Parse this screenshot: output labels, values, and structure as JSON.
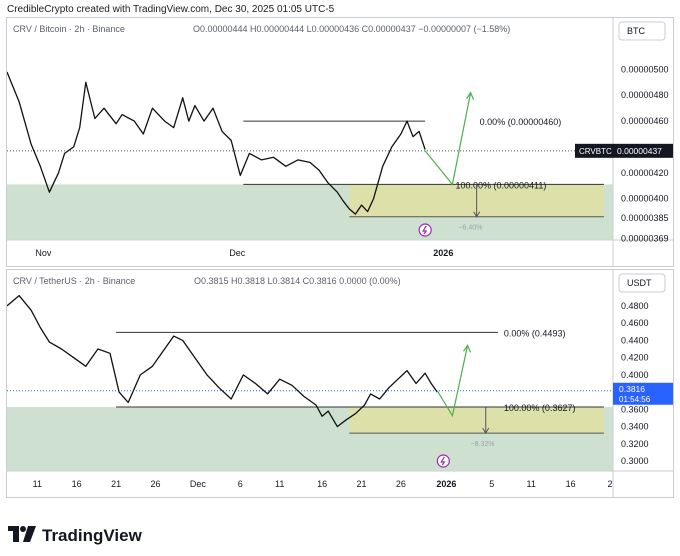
{
  "credit": "CredibleCrypto created with TradingView.com, Dec 30, 2025 01:05 UTC-5",
  "footer_brand": "TradingView",
  "colors": {
    "up_line": "#4caf50",
    "zone_green": "#c5dcc9",
    "zone_yellow": "#dfe0a4",
    "price_blue": "#2962ff",
    "current_tag": "#131722"
  },
  "icons": {
    "replay": "lightning-icon",
    "brand": "tradingview-logo-icon"
  },
  "chart_data": [
    {
      "type": "line",
      "symbol_header": "CRV / Bitcoin · 2h · Binance",
      "ohlc": {
        "o": "O0.00000444",
        "h": "H0.00000444",
        "l": "L0.00000436",
        "c": "C0.00000437",
        "chg": "−0.00000007 (−1.58%)"
      },
      "currency": "BTC",
      "y_ticks": [
        "0.00000500",
        "0.00000480",
        "0.00000460",
        "0.00000420",
        "0.00000400",
        "0.00000385",
        "0.00000369"
      ],
      "y_tick_values": [
        5e-06,
        4.8e-06,
        4.6e-06,
        4.2e-06,
        4e-06,
        3.85e-06,
        3.69e-06
      ],
      "ylim": [
        3.68e-06,
        5.15e-06
      ],
      "x_ticks": [
        "Nov",
        "Dec",
        "2026"
      ],
      "x_tick_pos": [
        0.06,
        0.38,
        0.72
      ],
      "current": {
        "label": "CRVBTC",
        "value": "0.00000437",
        "y": 4.37e-06
      },
      "levels": [
        {
          "label": "0.00% (0.00000460)",
          "y": 4.6e-06
        },
        {
          "label": "100.00% (0.00000411)",
          "y": 4.11e-06
        }
      ],
      "zone_low": 3.86e-06,
      "zone_label": "−6.40%",
      "price_x": [
        0.0,
        0.02,
        0.04,
        0.055,
        0.07,
        0.085,
        0.095,
        0.11,
        0.12,
        0.13,
        0.145,
        0.16,
        0.18,
        0.19,
        0.21,
        0.225,
        0.24,
        0.26,
        0.275,
        0.29,
        0.3,
        0.31,
        0.325,
        0.34,
        0.355,
        0.37,
        0.385,
        0.4,
        0.42,
        0.44,
        0.46,
        0.48,
        0.5,
        0.515,
        0.53,
        0.545,
        0.555,
        0.565,
        0.575,
        0.585,
        0.595,
        0.605,
        0.62,
        0.635,
        0.65,
        0.66,
        0.67,
        0.68,
        0.69
      ],
      "price_y": [
        4.98e-06,
        4.75e-06,
        4.42e-06,
        4.25e-06,
        4.05e-06,
        4.2e-06,
        4.35e-06,
        4.4e-06,
        4.55e-06,
        4.9e-06,
        4.62e-06,
        4.7e-06,
        4.58e-06,
        4.65e-06,
        4.6e-06,
        4.5e-06,
        4.7e-06,
        4.6e-06,
        4.55e-06,
        4.78e-06,
        4.6e-06,
        4.72e-06,
        4.6e-06,
        4.7e-06,
        4.52e-06,
        4.45e-06,
        4.18e-06,
        4.35e-06,
        4.3e-06,
        4.32e-06,
        4.25e-06,
        4.3e-06,
        4.28e-06,
        4.22e-06,
        4.12e-06,
        4.05e-06,
        3.98e-06,
        3.92e-06,
        3.88e-06,
        3.95e-06,
        3.9e-06,
        4e-06,
        4.25e-06,
        4.4e-06,
        4.5e-06,
        4.6e-06,
        4.48e-06,
        4.52e-06,
        4.38e-06
      ],
      "projection_x": [
        0.69,
        0.735,
        0.765
      ],
      "projection_y": [
        4.37e-06,
        4.11e-06,
        4.82e-06
      ]
    },
    {
      "type": "line",
      "symbol_header": "CRV / TetherUS · 2h · Binance",
      "ohlc": {
        "o": "O0.3815",
        "h": "H0.3818",
        "l": "L0.3814",
        "c": "C0.3816",
        "chg": "0.0000 (0.00%)"
      },
      "currency": "USDT",
      "y_ticks": [
        "0.4800",
        "0.4600",
        "0.4400",
        "0.4200",
        "0.4000",
        "0.3800",
        "0.3600",
        "0.3400",
        "0.3200",
        "0.3000"
      ],
      "y_tick_values": [
        0.48,
        0.46,
        0.44,
        0.42,
        0.4,
        0.38,
        0.36,
        0.34,
        0.32,
        0.3
      ],
      "ylim": [
        0.2885,
        0.4985
      ],
      "x_ticks": [
        "11",
        "16",
        "21",
        "26",
        "Dec",
        "6",
        "11",
        "16",
        "21",
        "26",
        "2026",
        "5",
        "11",
        "16",
        "2"
      ],
      "x_tick_pos": [
        0.05,
        0.115,
        0.18,
        0.245,
        0.315,
        0.385,
        0.45,
        0.52,
        0.585,
        0.65,
        0.725,
        0.8,
        0.865,
        0.93,
        0.995
      ],
      "current": {
        "label": "",
        "value": "0.3816",
        "countdown": "01:54:56",
        "y": 0.3816
      },
      "levels": [
        {
          "label": "0.00% (0.4493)",
          "y": 0.4493
        },
        {
          "label": "100.00% (0.3627)",
          "y": 0.3627
        }
      ],
      "zone_low": 0.3325,
      "zone_label": "−8.32%",
      "price_x": [
        0.0,
        0.02,
        0.04,
        0.055,
        0.07,
        0.09,
        0.11,
        0.13,
        0.15,
        0.17,
        0.185,
        0.2,
        0.22,
        0.24,
        0.26,
        0.275,
        0.29,
        0.31,
        0.33,
        0.35,
        0.37,
        0.39,
        0.41,
        0.43,
        0.45,
        0.47,
        0.49,
        0.51,
        0.52,
        0.53,
        0.545,
        0.56,
        0.575,
        0.59,
        0.6,
        0.615,
        0.63,
        0.645,
        0.66,
        0.675,
        0.69,
        0.7,
        0.71
      ],
      "price_y": [
        0.48,
        0.492,
        0.475,
        0.455,
        0.438,
        0.43,
        0.42,
        0.41,
        0.43,
        0.425,
        0.38,
        0.368,
        0.4,
        0.41,
        0.43,
        0.445,
        0.44,
        0.42,
        0.4,
        0.385,
        0.372,
        0.4,
        0.39,
        0.378,
        0.395,
        0.388,
        0.375,
        0.365,
        0.352,
        0.358,
        0.34,
        0.348,
        0.355,
        0.365,
        0.378,
        0.372,
        0.385,
        0.395,
        0.405,
        0.39,
        0.402,
        0.39,
        0.38
      ],
      "projection_x": [
        0.71,
        0.735,
        0.76
      ],
      "projection_y": [
        0.3816,
        0.3527,
        0.4343
      ]
    }
  ]
}
